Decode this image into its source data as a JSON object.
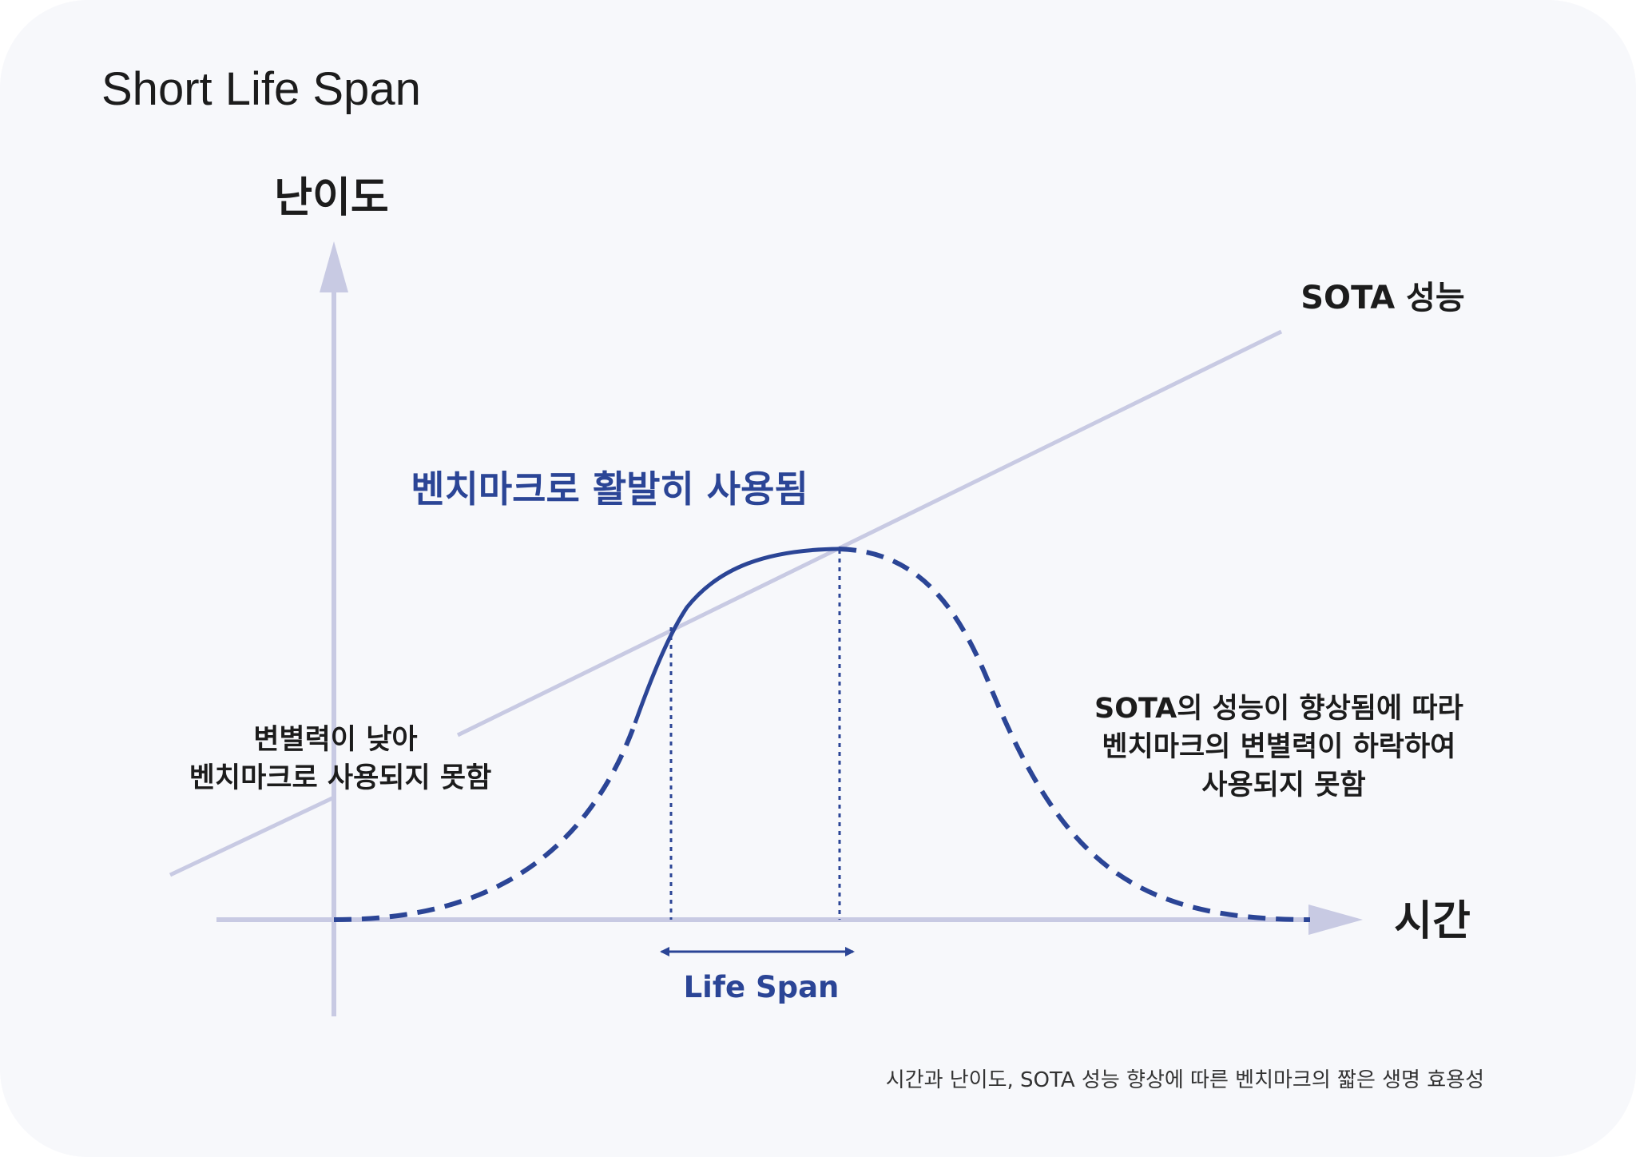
{
  "title": "Short Life Span",
  "y_axis_label": "난이도",
  "x_axis_label": "시간",
  "sota_label": "SOTA 성능",
  "active_label": "벤치마크로 활발히 사용됨",
  "left_note": [
    "변별력이 낮아",
    "벤치마크로 사용되지 못함"
  ],
  "right_note": [
    "SOTA의 성능이 향상됨에 따라",
    "벤치마크의 변별력이 하락하여",
    "사용되지 못함"
  ],
  "life_span_label": "Life Span",
  "caption": "시간과 난이도, SOTA 성능 향상에 따른 벤치마크의 짧은 생명 효용성",
  "colors": {
    "axis": "#c8cae3",
    "curve": "#2b4596",
    "text": "#1c1c1c",
    "background": "#f7f8fb"
  }
}
